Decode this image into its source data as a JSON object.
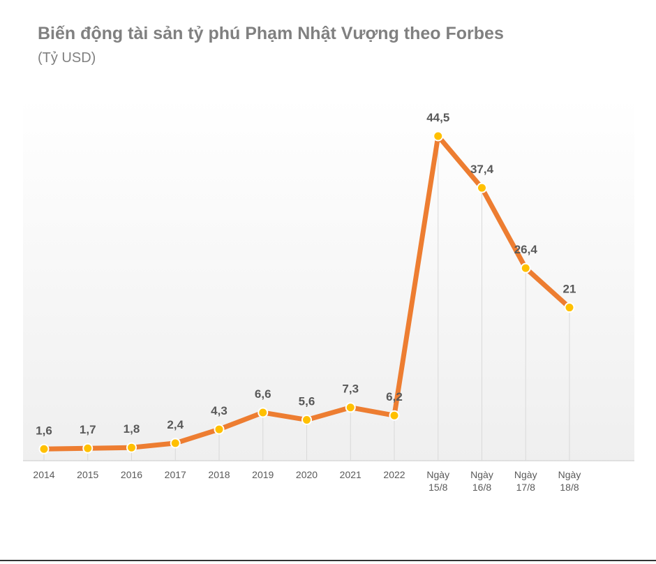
{
  "chart_data": {
    "type": "line",
    "title": "Biến động tài sản tỷ phú Phạm Nhật Vượng theo Forbes",
    "subtitle": "(Tỷ USD)",
    "categories": [
      [
        "2014"
      ],
      [
        "2015"
      ],
      [
        "2016"
      ],
      [
        "2017"
      ],
      [
        "2018"
      ],
      [
        "2019"
      ],
      [
        "2020"
      ],
      [
        "2021"
      ],
      [
        "2022"
      ],
      [
        "Ngày",
        "15/8"
      ],
      [
        "Ngày",
        "16/8"
      ],
      [
        "Ngày",
        "17/8"
      ],
      [
        "Ngày",
        "18/8"
      ]
    ],
    "data_labels": [
      "1,6",
      "1,7",
      "1,8",
      "2,4",
      "4,3",
      "6,6",
      "5,6",
      "7,3",
      "6,2",
      "44,5",
      "37,4",
      "26,4",
      "21"
    ],
    "series": [
      {
        "values": [
          1.6,
          1.7,
          1.8,
          2.4,
          4.3,
          6.6,
          5.6,
          7.3,
          6.2,
          44.5,
          37.4,
          26.4,
          21
        ]
      }
    ],
    "ylim": [
      0,
      50
    ],
    "xlabel": "",
    "ylabel": "",
    "grid": false,
    "drop_lines": true,
    "colors": {
      "line": "#ED7D31",
      "marker_fill": "#FFC000",
      "marker_stroke": "#ffffff",
      "data_label": "#595959",
      "tick_label": "#595959",
      "drop_line": "#D9D9D9",
      "axis": "#D9D9D9",
      "plot_bg_top": "#ffffff",
      "plot_bg_bottom": "#efefef",
      "title": "#808080"
    }
  }
}
